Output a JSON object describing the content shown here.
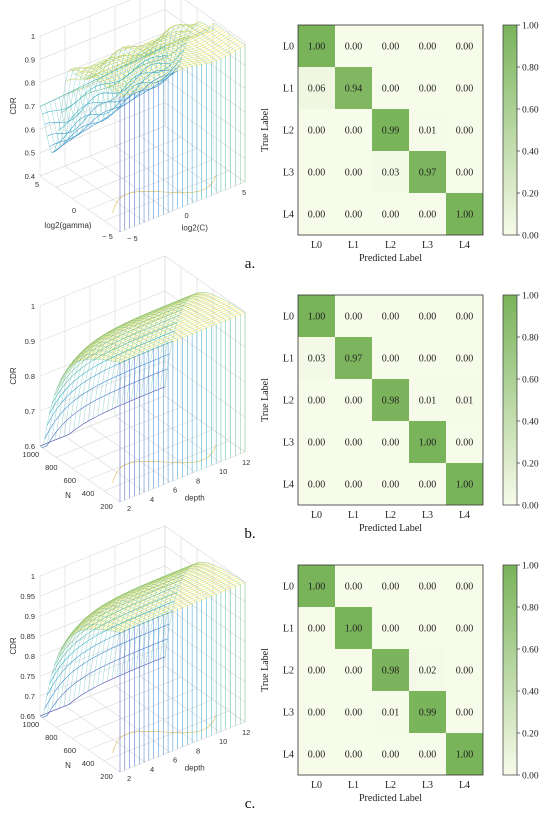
{
  "panels": [
    {
      "caption": "a.",
      "surface": {
        "kind": "svm",
        "zlabel": "CDR",
        "xlabel": "log2(gamma)",
        "ylabel": "log2(C)",
        "zticks": [
          "0.4",
          "0.5",
          "0.6",
          "0.7",
          "0.8",
          "0.9",
          "1"
        ],
        "xticks": [
          "5",
          "0",
          "− 5"
        ],
        "yticks": [
          "− 5",
          "0",
          "5"
        ]
      },
      "confusion": {
        "xlabel": "Predicted Label",
        "ylabel": "True Label",
        "labels": [
          "L0",
          "L1",
          "L2",
          "L3",
          "L4"
        ],
        "matrix": [
          [
            1.0,
            0.0,
            0.0,
            0.0,
            0.0
          ],
          [
            0.06,
            0.94,
            0.0,
            0.0,
            0.0
          ],
          [
            0.0,
            0.0,
            0.99,
            0.01,
            0.0
          ],
          [
            0.0,
            0.0,
            0.03,
            0.97,
            0.0
          ],
          [
            0.0,
            0.0,
            0.0,
            0.0,
            1.0
          ]
        ],
        "colorbar_ticks": [
          "1.00",
          "0.80",
          "0.60",
          "0.40",
          "0.20",
          "0.00"
        ]
      }
    },
    {
      "caption": "b.",
      "surface": {
        "kind": "forest",
        "zlabel": "CDR",
        "xlabel": "N",
        "ylabel": "depth",
        "zticks": [
          "0.6",
          "0.7",
          "0.8",
          "0.9",
          "1"
        ],
        "xticks": [
          "1000",
          "800",
          "600",
          "400",
          "200"
        ],
        "yticks": [
          "2",
          "4",
          "6",
          "8",
          "10",
          "12"
        ]
      },
      "confusion": {
        "xlabel": "Predicted Label",
        "ylabel": "True Label",
        "labels": [
          "L0",
          "L1",
          "L2",
          "L3",
          "L4"
        ],
        "matrix": [
          [
            1.0,
            0.0,
            0.0,
            0.0,
            0.0
          ],
          [
            0.03,
            0.97,
            0.0,
            0.0,
            0.0
          ],
          [
            0.0,
            0.0,
            0.98,
            0.01,
            0.01
          ],
          [
            0.0,
            0.0,
            0.0,
            1.0,
            0.0
          ],
          [
            0.0,
            0.0,
            0.0,
            0.0,
            1.0
          ]
        ],
        "colorbar_ticks": [
          "1.00",
          "0.80",
          "0.60",
          "0.40",
          "0.20",
          "0.00"
        ]
      }
    },
    {
      "caption": "c.",
      "surface": {
        "kind": "forest",
        "zlabel": "CDR",
        "xlabel": "N",
        "ylabel": "depth",
        "zticks": [
          "0.65",
          "0.7",
          "0.75",
          "0.8",
          "0.85",
          "0.9",
          "0.95",
          "1"
        ],
        "xticks": [
          "1000",
          "800",
          "600",
          "400",
          "200"
        ],
        "yticks": [
          "2",
          "4",
          "6",
          "8",
          "10",
          "12"
        ]
      },
      "confusion": {
        "xlabel": "Predicted Label",
        "ylabel": "True Label",
        "labels": [
          "L0",
          "L1",
          "L2",
          "L3",
          "L4"
        ],
        "matrix": [
          [
            1.0,
            0.0,
            0.0,
            0.0,
            0.0
          ],
          [
            0.0,
            1.0,
            0.0,
            0.0,
            0.0
          ],
          [
            0.0,
            0.0,
            0.98,
            0.02,
            0.0
          ],
          [
            0.0,
            0.0,
            0.01,
            0.99,
            0.0
          ],
          [
            0.0,
            0.0,
            0.0,
            0.0,
            1.0
          ]
        ],
        "colorbar_ticks": [
          "1.00",
          "0.80",
          "0.60",
          "0.40",
          "0.20",
          "0.00"
        ]
      }
    }
  ],
  "colors": {
    "low": "#f7fbea",
    "high": "#79b35a",
    "grid": "#d9d9d9",
    "axis": "#333333"
  },
  "chart_data": [
    {
      "type": "heatmap",
      "title": "",
      "xlabel": "Predicted Label",
      "ylabel": "True Label",
      "x": [
        "L0",
        "L1",
        "L2",
        "L3",
        "L4"
      ],
      "y": [
        "L0",
        "L1",
        "L2",
        "L3",
        "L4"
      ],
      "values": [
        [
          1.0,
          0.0,
          0.0,
          0.0,
          0.0
        ],
        [
          0.06,
          0.94,
          0.0,
          0.0,
          0.0
        ],
        [
          0.0,
          0.0,
          0.99,
          0.01,
          0.0
        ],
        [
          0.0,
          0.0,
          0.03,
          0.97,
          0.0
        ],
        [
          0.0,
          0.0,
          0.0,
          0.0,
          1.0
        ]
      ],
      "colorbar_range": [
        0,
        1
      ]
    },
    {
      "type": "heatmap",
      "title": "",
      "xlabel": "Predicted Label",
      "ylabel": "True Label",
      "x": [
        "L0",
        "L1",
        "L2",
        "L3",
        "L4"
      ],
      "y": [
        "L0",
        "L1",
        "L2",
        "L3",
        "L4"
      ],
      "values": [
        [
          1.0,
          0.0,
          0.0,
          0.0,
          0.0
        ],
        [
          0.03,
          0.97,
          0.0,
          0.0,
          0.0
        ],
        [
          0.0,
          0.0,
          0.98,
          0.01,
          0.01
        ],
        [
          0.0,
          0.0,
          0.0,
          1.0,
          0.0
        ],
        [
          0.0,
          0.0,
          0.0,
          0.0,
          1.0
        ]
      ],
      "colorbar_range": [
        0,
        1
      ]
    },
    {
      "type": "heatmap",
      "title": "",
      "xlabel": "Predicted Label",
      "ylabel": "True Label",
      "x": [
        "L0",
        "L1",
        "L2",
        "L3",
        "L4"
      ],
      "y": [
        "L0",
        "L1",
        "L2",
        "L3",
        "L4"
      ],
      "values": [
        [
          1.0,
          0.0,
          0.0,
          0.0,
          0.0
        ],
        [
          0.0,
          1.0,
          0.0,
          0.0,
          0.0
        ],
        [
          0.0,
          0.0,
          0.98,
          0.02,
          0.0
        ],
        [
          0.0,
          0.0,
          0.01,
          0.99,
          0.0
        ],
        [
          0.0,
          0.0,
          0.0,
          0.0,
          1.0
        ]
      ],
      "colorbar_range": [
        0,
        1
      ]
    }
  ]
}
